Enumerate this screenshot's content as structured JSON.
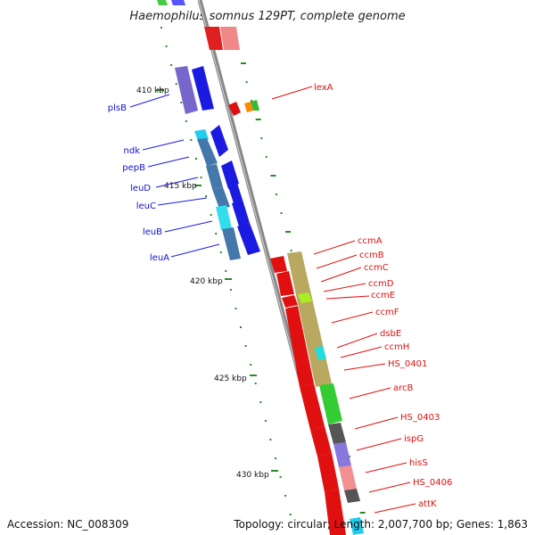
{
  "title": "Haemophilus somnus 129PT, complete genome",
  "accession": "Accession: NC_008309",
  "summary": "Topology: circular; Length: 2,007,700 bp; Genes: 1,863",
  "ticks": [
    "410 kbp",
    "415 kbp",
    "420 kbp",
    "425 kbp",
    "430 kbp"
  ],
  "labels_left": [
    "plsB",
    "ndk",
    "pepB",
    "leuD",
    "leuC",
    "leuB",
    "leuA"
  ],
  "labels_right": [
    "lexA",
    "ccmA",
    "ccmB",
    "ccmC",
    "ccmD",
    "ccmE",
    "ccmF",
    "dsbE",
    "ccmH",
    "HS_0401",
    "arcB",
    "HS_0403",
    "ispG",
    "hisS",
    "HS_0406",
    "attK"
  ],
  "colors": {
    "forward": "#0000ee",
    "reverse": "#ee0000",
    "backbone": "#888888",
    "tick": "#2a8a2a"
  }
}
